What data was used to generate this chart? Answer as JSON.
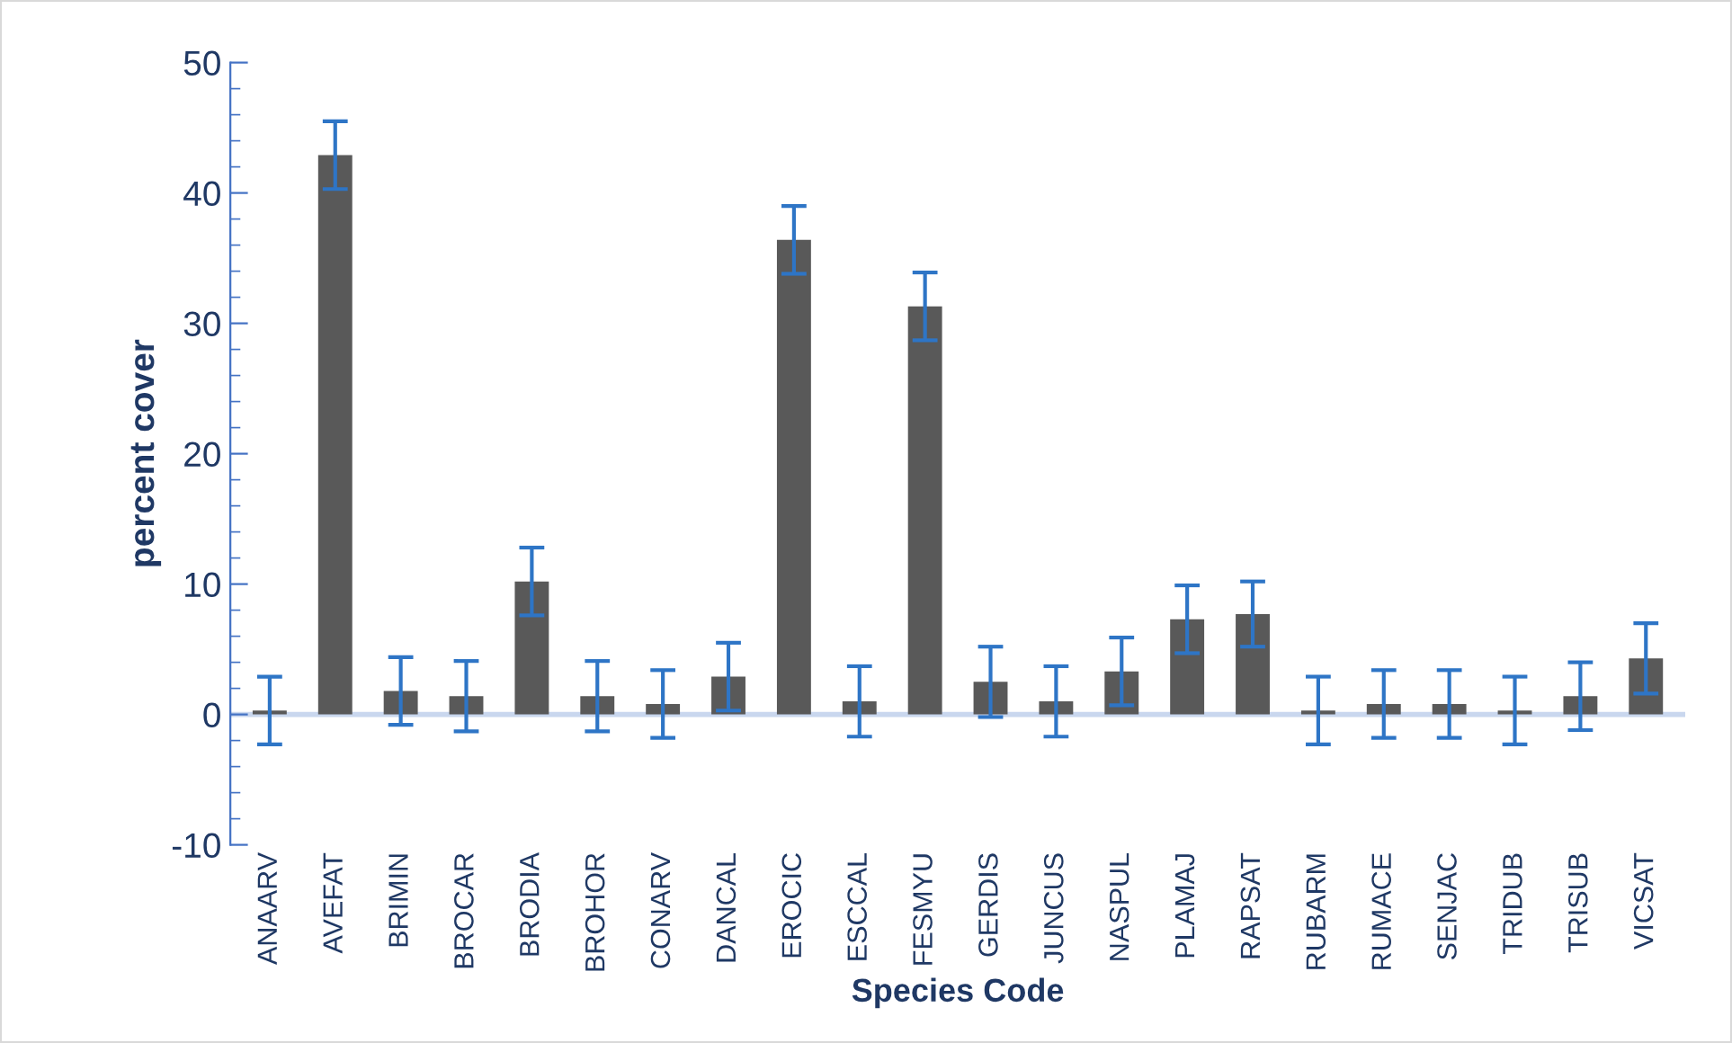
{
  "chart_data": {
    "type": "bar",
    "xlabel": "Species Code",
    "ylabel": "percent cover",
    "categories": [
      "ANAARV",
      "AVEFAT",
      "BRIMIN",
      "BROCAR",
      "BRODIA",
      "BROHOR",
      "CONARV",
      "DANCAL",
      "EROCIC",
      "ESCCAL",
      "FESMYU",
      "GERDIS",
      "JUNCUS",
      "NASPUL",
      "PLAMAJ",
      "RAPSAT",
      "RUBARM",
      "RUMACE",
      "SENJAC",
      "TRIDUB",
      "TRISUB",
      "VICSAT"
    ],
    "series": [
      {
        "color": "#595959",
        "values": [
          0.3,
          42.9,
          1.8,
          1.4,
          10.2,
          1.4,
          0.8,
          2.9,
          36.4,
          1.0,
          31.3,
          2.5,
          1.0,
          3.3,
          7.3,
          7.7,
          0.3,
          0.8,
          0.8,
          0.3,
          1.4,
          4.3
        ],
        "errors": [
          2.6,
          2.6,
          2.6,
          2.7,
          2.6,
          2.7,
          2.6,
          2.6,
          2.6,
          2.7,
          2.6,
          2.7,
          2.7,
          2.6,
          2.6,
          2.5,
          2.6,
          2.6,
          2.6,
          2.6,
          2.6,
          2.7
        ]
      }
    ],
    "ylim": [
      -10,
      50
    ],
    "yticks": [
      -10,
      0,
      10,
      20,
      30,
      40,
      50
    ],
    "ref_lines": [
      {
        "axis": "y",
        "value": 0,
        "label": null,
        "color": "#c9d7ee"
      }
    ],
    "grid": false,
    "legend": false
  }
}
